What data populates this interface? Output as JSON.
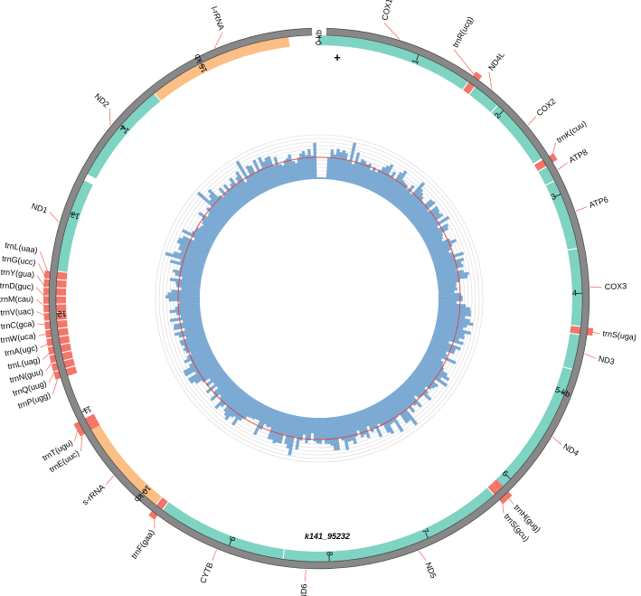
{
  "map": {
    "contig_name": "k141_95232",
    "strand_symbol": "+",
    "genome_length_kb": 16.2,
    "colors": {
      "backbone": "#888888",
      "backbone_edge": "#444444",
      "protein_gene": "#7fd3c3",
      "trna_gene": "#f4756a",
      "rrna_gene": "#fbbf85",
      "label_line": "#f4756a",
      "depth_bars": "#7aa9d3",
      "depth_mean_line": "#e8352a",
      "depth_grid": "#d8d8d8"
    },
    "ticks": [
      {
        "kb": 0,
        "label": "0 kb"
      },
      {
        "kb": 1,
        "label": "1"
      },
      {
        "kb": 2,
        "label": "2"
      },
      {
        "kb": 3,
        "label": "3"
      },
      {
        "kb": 4,
        "label": "4"
      },
      {
        "kb": 5,
        "label": "5 kb"
      },
      {
        "kb": 6,
        "label": "6"
      },
      {
        "kb": 7,
        "label": "7"
      },
      {
        "kb": 8,
        "label": "8"
      },
      {
        "kb": 9,
        "label": "9"
      },
      {
        "kb": 10,
        "label": "10 kb"
      },
      {
        "kb": 11,
        "label": "11"
      },
      {
        "kb": 12,
        "label": "12"
      },
      {
        "kb": 13,
        "label": "13"
      },
      {
        "kb": 14,
        "label": "14"
      },
      {
        "kb": 15,
        "label": "15 kb"
      }
    ],
    "genes": [
      {
        "label": "COX1",
        "type": "protein",
        "start_kb": 0.0,
        "end_kb": 1.55,
        "label_kb": 0.6
      },
      {
        "label": "trnR(ucg)",
        "type": "trna",
        "start_kb": 1.56,
        "end_kb": 1.63,
        "label_kb": 1.28
      },
      {
        "label": "ND4L",
        "type": "protein",
        "start_kb": 1.64,
        "end_kb": 1.92,
        "label_kb": 1.66
      },
      {
        "label": "COX2",
        "type": "protein",
        "start_kb": 1.93,
        "end_kb": 2.6,
        "label_kb": 2.25
      },
      {
        "label": "trnK(cuu)",
        "type": "trna",
        "start_kb": 2.62,
        "end_kb": 2.69,
        "label_kb": 2.55
      },
      {
        "label": "ATP8",
        "type": "protein",
        "start_kb": 2.7,
        "end_kb": 2.85,
        "label_kb": 2.76
      },
      {
        "label": "ATP6",
        "type": "protein",
        "start_kb": 2.86,
        "end_kb": 3.55,
        "label_kb": 3.2
      },
      {
        "label": "COX3",
        "type": "protein",
        "start_kb": 3.56,
        "end_kb": 4.32,
        "label_kb": 3.95
      },
      {
        "label": "trnS(uga)",
        "type": "trna",
        "start_kb": 4.33,
        "end_kb": 4.4,
        "label_kb": 4.37
      },
      {
        "label": "ND3",
        "type": "protein",
        "start_kb": 4.41,
        "end_kb": 4.75,
        "label_kb": 4.6
      },
      {
        "label": "ND4",
        "type": "protein",
        "start_kb": 4.76,
        "end_kb": 6.1,
        "label_kb": 5.45
      },
      {
        "label": "trnH(gug)",
        "type": "trna",
        "start_kb": 6.1,
        "end_kb": 6.16,
        "label_kb": 6.15
      },
      {
        "label": "trnS(gcu)",
        "type": "trna",
        "start_kb": 6.16,
        "end_kb": 6.22,
        "label_kb": 6.27
      },
      {
        "label": "ND5",
        "type": "protein",
        "start_kb": 6.23,
        "end_kb": 8.03,
        "label_kb": 7.1
      },
      {
        "label": "ND6",
        "type": "protein",
        "start_kb": 8.0,
        "end_kb": 8.45,
        "label_kb": 8.23
      },
      {
        "label": "CYTB",
        "type": "protein",
        "start_kb": 8.46,
        "end_kb": 9.74,
        "label_kb": 9.1
      },
      {
        "label": "trnF(gaa)",
        "type": "trna",
        "start_kb": 9.75,
        "end_kb": 9.82,
        "label_kb": 9.7
      },
      {
        "label": "s-rRNA",
        "type": "rrna",
        "start_kb": 9.83,
        "end_kb": 10.8,
        "label_kb": 10.3
      },
      {
        "label": "trnE(uuc)",
        "type": "trna",
        "start_kb": 10.8,
        "end_kb": 10.87,
        "label_kb": 10.68
      },
      {
        "label": "trnT(ugu)",
        "type": "trna",
        "start_kb": 10.87,
        "end_kb": 10.93,
        "label_kb": 10.79
      },
      {
        "label": "trnP(ugg)",
        "type": "trna",
        "start_kb": 11.38,
        "end_kb": 11.45,
        "label_kb": 11.26
      },
      {
        "label": "trnQ(uug)",
        "type": "trna",
        "start_kb": 11.46,
        "end_kb": 11.53,
        "label_kb": 11.37
      },
      {
        "label": "trnN(guu)",
        "type": "trna",
        "start_kb": 11.54,
        "end_kb": 11.61,
        "label_kb": 11.48
      },
      {
        "label": "trnL(uag)",
        "type": "trna",
        "start_kb": 11.62,
        "end_kb": 11.69,
        "label_kb": 11.59
      },
      {
        "label": "trnA(ugc)",
        "type": "trna",
        "start_kb": 11.7,
        "end_kb": 11.77,
        "label_kb": 11.7
      },
      {
        "label": "trnW(uca)",
        "type": "trna",
        "start_kb": 11.78,
        "end_kb": 11.85,
        "label_kb": 11.81
      },
      {
        "label": "trnC(gca)",
        "type": "trna",
        "start_kb": 11.86,
        "end_kb": 11.93,
        "label_kb": 11.92
      },
      {
        "label": "trnV(uac)",
        "type": "trna",
        "start_kb": 11.94,
        "end_kb": 12.01,
        "label_kb": 12.03
      },
      {
        "label": "trnM(cau)",
        "type": "trna",
        "start_kb": 12.02,
        "end_kb": 12.09,
        "label_kb": 12.14
      },
      {
        "label": "trnD(guc)",
        "type": "trna",
        "start_kb": 12.1,
        "end_kb": 12.17,
        "label_kb": 12.25
      },
      {
        "label": "trnY(gua)",
        "type": "trna",
        "start_kb": 12.18,
        "end_kb": 12.25,
        "label_kb": 12.36
      },
      {
        "label": "trnG(ucc)",
        "type": "trna",
        "start_kb": 12.26,
        "end_kb": 12.33,
        "label_kb": 12.47
      },
      {
        "label": "trnL(uaa)",
        "type": "trna",
        "start_kb": 12.34,
        "end_kb": 12.41,
        "label_kb": 12.58
      },
      {
        "label": "ND1",
        "type": "protein",
        "start_kb": 12.42,
        "end_kb": 13.35,
        "label_kb": 12.95
      },
      {
        "label": "ND2",
        "type": "protein",
        "start_kb": 13.42,
        "end_kb": 14.45,
        "label_kb": 14.05
      },
      {
        "label": "l-rRNA",
        "type": "rrna",
        "start_kb": 14.46,
        "end_kb": 15.9,
        "label_kb": 15.3
      }
    ]
  }
}
